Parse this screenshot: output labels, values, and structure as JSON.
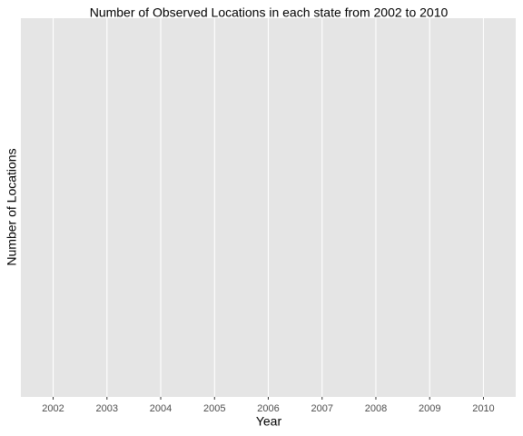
{
  "chart_data": {
    "type": "bar",
    "title": "Number of Observed Locations in each state from 2002 to 2010",
    "x_label": "Year",
    "y_label": "Number of Locations",
    "categories": [
      "2002",
      "2003",
      "2004",
      "2005",
      "2006",
      "2007",
      "2008",
      "2009",
      "2010"
    ],
    "grid": true
  }
}
